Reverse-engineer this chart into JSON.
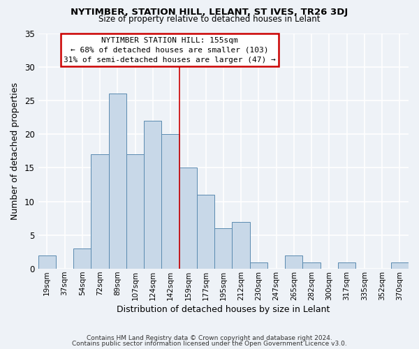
{
  "title": "NYTIMBER, STATION HILL, LELANT, ST IVES, TR26 3DJ",
  "subtitle": "Size of property relative to detached houses in Lelant",
  "xlabel": "Distribution of detached houses by size in Lelant",
  "ylabel": "Number of detached properties",
  "bar_labels": [
    "19sqm",
    "37sqm",
    "54sqm",
    "72sqm",
    "89sqm",
    "107sqm",
    "124sqm",
    "142sqm",
    "159sqm",
    "177sqm",
    "195sqm",
    "212sqm",
    "230sqm",
    "247sqm",
    "265sqm",
    "282sqm",
    "300sqm",
    "317sqm",
    "335sqm",
    "352sqm",
    "370sqm"
  ],
  "bar_values": [
    2,
    0,
    3,
    17,
    26,
    17,
    22,
    20,
    15,
    11,
    6,
    7,
    1,
    0,
    2,
    1,
    0,
    1,
    0,
    0,
    1
  ],
  "bar_color": "#c8d8e8",
  "bar_edge_color": "#5a8ab0",
  "vline_index": 8,
  "vline_color": "#cc0000",
  "ylim": [
    0,
    35
  ],
  "yticks": [
    0,
    5,
    10,
    15,
    20,
    25,
    30,
    35
  ],
  "annotation_title": "NYTIMBER STATION HILL: 155sqm",
  "annotation_line1": "← 68% of detached houses are smaller (103)",
  "annotation_line2": "31% of semi-detached houses are larger (47) →",
  "annotation_box_color": "#ffffff",
  "annotation_box_edge": "#cc0000",
  "footer1": "Contains HM Land Registry data © Crown copyright and database right 2024.",
  "footer2": "Contains public sector information licensed under the Open Government Licence v3.0.",
  "background_color": "#eef2f7",
  "grid_color": "#ffffff",
  "title_fontsize": 9.5,
  "subtitle_fontsize": 8.5
}
